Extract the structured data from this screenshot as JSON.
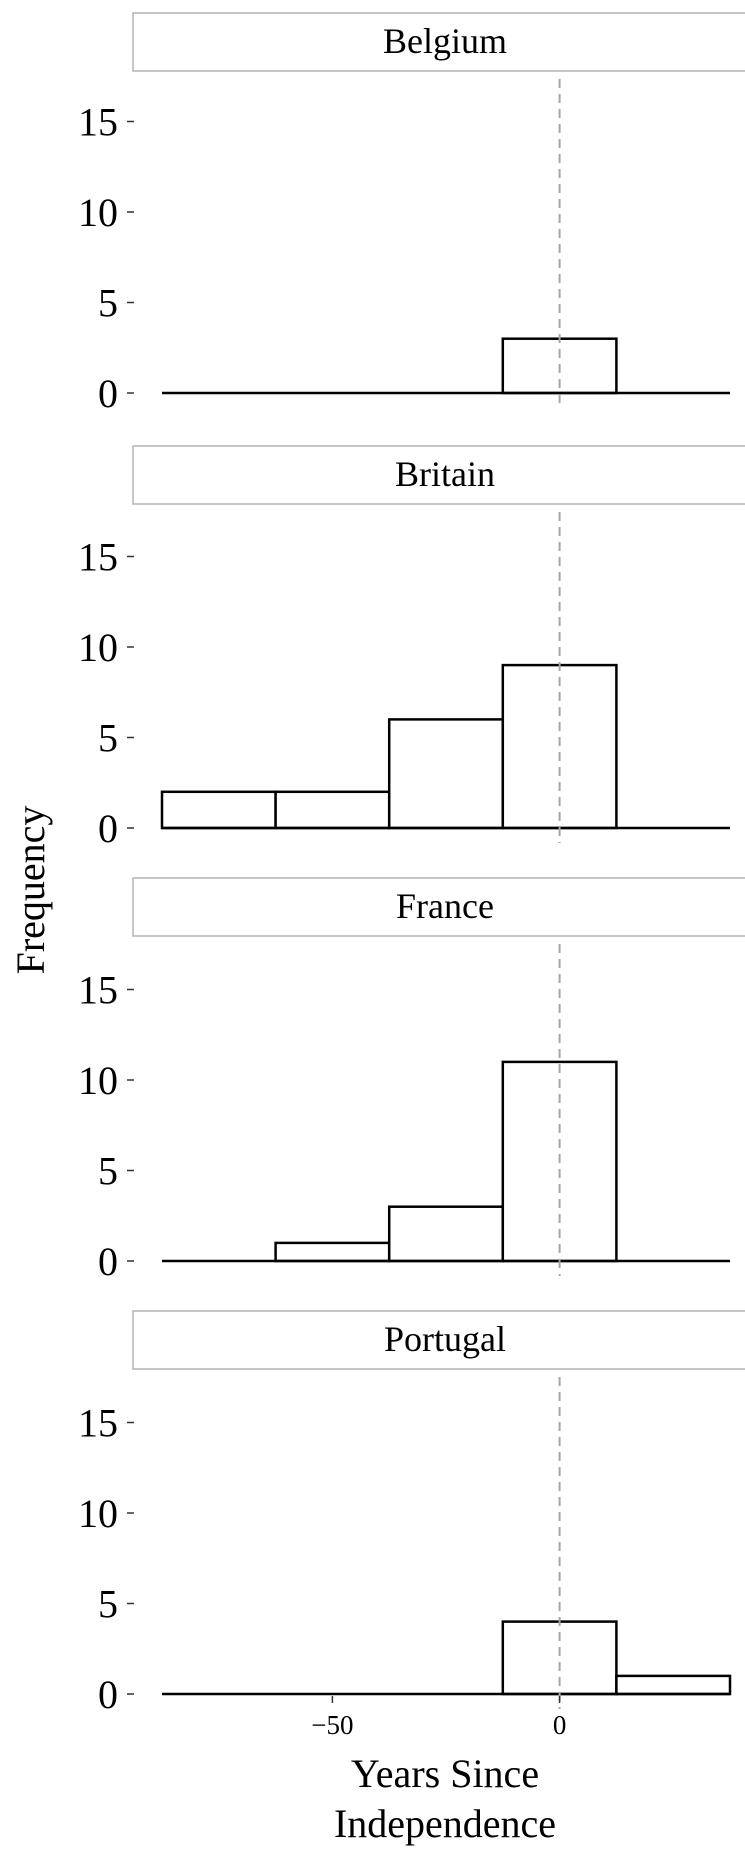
{
  "chart_data": {
    "type": "bar",
    "ylabel": "Frequency",
    "xlabel_lines": [
      "Years Since",
      "Independence"
    ],
    "xlim": [
      -87.5,
      37.5
    ],
    "ylim": [
      0,
      17.5
    ],
    "x_ticks": [
      -50,
      0
    ],
    "x_tick_labels": [
      "−50",
      "0"
    ],
    "y_ticks": [
      0,
      5,
      10,
      15
    ],
    "y_tick_labels": [
      "0",
      "5",
      "10",
      "15"
    ],
    "bin_edges": [
      -87.5,
      -62.5,
      -37.5,
      -12.5,
      12.5,
      37.5
    ],
    "reference_line_x": 0,
    "grid": false,
    "panels": [
      {
        "name": "Belgium",
        "values": [
          0,
          0,
          0,
          3,
          0
        ]
      },
      {
        "name": "Britain",
        "values": [
          2,
          2,
          6,
          9,
          0
        ]
      },
      {
        "name": "France",
        "values": [
          0,
          1,
          3,
          11,
          0
        ]
      },
      {
        "name": "Portugal",
        "values": [
          0,
          0,
          0,
          4,
          1
        ]
      }
    ]
  }
}
